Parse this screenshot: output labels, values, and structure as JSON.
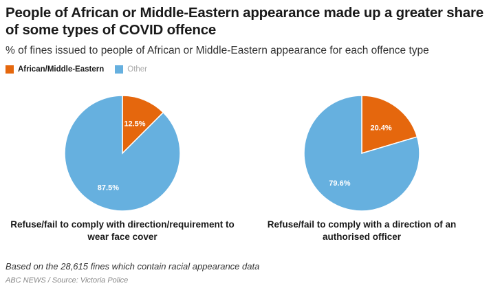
{
  "header": {
    "title": "People of African or Middle-Eastern appearance made up a greater share of some types of COVID offence",
    "subtitle": "% of fines issued to people of African or Middle-Eastern appearance for each offence type"
  },
  "legend": [
    {
      "label": "African/Middle-Eastern",
      "color": "#e5670d"
    },
    {
      "label": "Other",
      "color": "#66b0df"
    }
  ],
  "chart_data": [
    {
      "type": "pie",
      "title": "Refuse/fail to comply with direction/requirement to wear face cover",
      "slices": [
        {
          "label": "African/Middle-Eastern",
          "value": 12.5,
          "display": "12.5%",
          "color": "#e5670d"
        },
        {
          "label": "Other",
          "value": 87.5,
          "display": "87.5%",
          "color": "#66b0df"
        }
      ]
    },
    {
      "type": "pie",
      "title": "Refuse/fail to comply with a direction of an authorised officer",
      "slices": [
        {
          "label": "African/Middle-Eastern",
          "value": 20.4,
          "display": "20.4%",
          "color": "#e5670d"
        },
        {
          "label": "Other",
          "value": 79.6,
          "display": "79.6%",
          "color": "#66b0df"
        }
      ]
    }
  ],
  "footer": {
    "note": "Based on the 28,615 fines which contain racial appearance data",
    "source": "ABC NEWS / Source: Victoria Police"
  }
}
